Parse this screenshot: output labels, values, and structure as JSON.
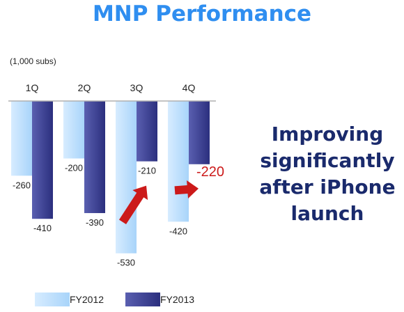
{
  "title": "MNP Performance",
  "unit_label": "(1,000 subs)",
  "message": "Improving significantly after iPhone launch",
  "highlight_color": "#cc1a1a",
  "chart_data": {
    "type": "bar",
    "categories": [
      "1Q",
      "2Q",
      "3Q",
      "4Q"
    ],
    "series": [
      {
        "name": "FY2012",
        "values": [
          -260,
          -200,
          -530,
          -420
        ],
        "color": "#a8d4fa"
      },
      {
        "name": "FY2013",
        "values": [
          -410,
          -390,
          -210,
          -220
        ],
        "color": "#2b2f7e"
      }
    ],
    "data_labels": [
      [
        "-260",
        "-200",
        "-530",
        "-420"
      ],
      [
        "-410",
        "-390",
        "-210",
        "-220"
      ]
    ],
    "highlighted_label": {
      "series": 1,
      "index": 3
    },
    "ylim": [
      -550,
      0
    ],
    "arrows": [
      {
        "from": "3Q FY2012",
        "to": "3Q FY2013"
      },
      {
        "from": "4Q FY2012",
        "to": "4Q FY2013"
      }
    ],
    "legend_placement": "bottom",
    "grid": false
  }
}
